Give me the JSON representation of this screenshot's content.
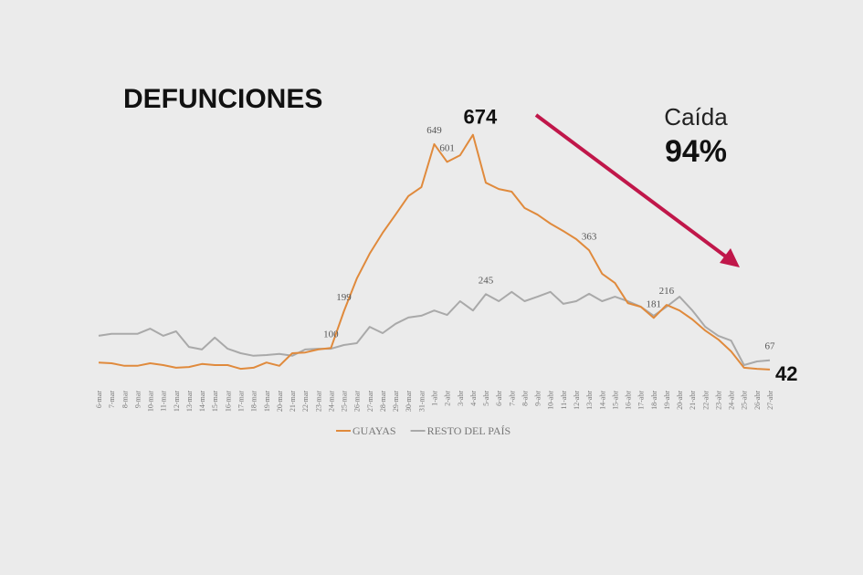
{
  "chart_data": {
    "type": "line",
    "title": "DEFUNCIONES",
    "categories": [
      "6-mar",
      "7-mar",
      "8-mar",
      "9-mar",
      "10-mar",
      "11-mar",
      "12-mar",
      "13-mar",
      "14-mar",
      "15-mar",
      "16-mar",
      "17-mar",
      "18-mar",
      "19-mar",
      "20-mar",
      "21-mar",
      "22-mar",
      "23-mar",
      "24-mar",
      "25-mar",
      "26-mar",
      "27-mar",
      "28-mar",
      "29-mar",
      "30-mar",
      "31-mar",
      "1-abr",
      "2-abr",
      "3-abr",
      "4-abr",
      "5-abr",
      "6-abr",
      "7-abr",
      "8-abr",
      "9-abr",
      "10-abr",
      "11-abr",
      "12-abr",
      "13-abr",
      "14-abr",
      "15-abr",
      "16-abr",
      "17-abr",
      "18-abr",
      "19-abr",
      "20-abr",
      "21-abr",
      "22-abr",
      "23-abr",
      "24-abr",
      "25-abr",
      "26-abr",
      "27-abr"
    ],
    "series": [
      {
        "name": "GUAYAS",
        "color": "#e08a3c",
        "values": [
          61,
          59,
          52,
          52,
          59,
          54,
          47,
          49,
          57,
          54,
          54,
          44,
          47,
          61,
          52,
          86,
          88,
          96,
          100,
          199,
          287,
          354,
          410,
          459,
          509,
          533,
          649,
          601,
          619,
          674,
          545,
          528,
          521,
          477,
          459,
          435,
          415,
          393,
          363,
          300,
          275,
          221,
          211,
          181,
          216,
          201,
          177,
          147,
          123,
          91,
          47,
          44,
          42
        ],
        "label_indices": [
          18,
          19,
          26,
          27,
          38,
          43,
          44
        ],
        "bold_label_indices": [
          29,
          52
        ]
      },
      {
        "name": "RESTO DEL PAÍS",
        "color": "#a9a9a9",
        "values": [
          133,
          138,
          138,
          138,
          152,
          133,
          145,
          103,
          96,
          128,
          98,
          86,
          79,
          81,
          84,
          79,
          96,
          98,
          98,
          108,
          113,
          157,
          140,
          165,
          182,
          187,
          201,
          189,
          226,
          201,
          245,
          226,
          251,
          226,
          238,
          251,
          219,
          226,
          246,
          226,
          238,
          226,
          211,
          187,
          211,
          238,
          201,
          157,
          133,
          120,
          54,
          64,
          67
        ],
        "label_indices": [
          30,
          52
        ],
        "bold_label_indices": []
      }
    ],
    "annotation": {
      "caption": "Caída",
      "value": "94%"
    }
  }
}
